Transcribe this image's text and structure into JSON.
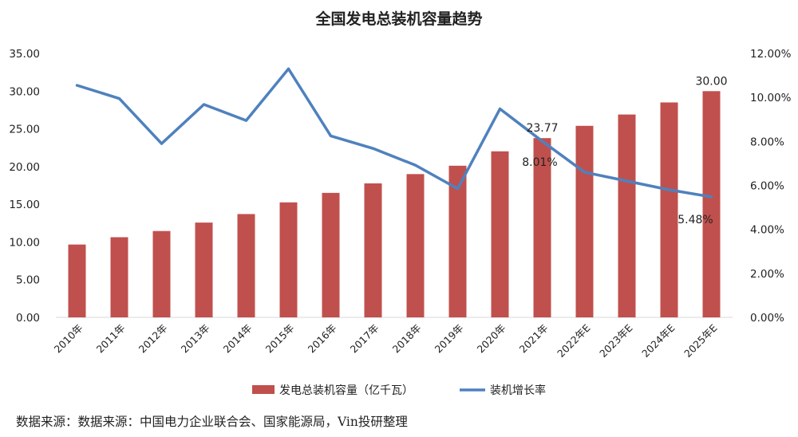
{
  "chart_data": {
    "type": "bar",
    "title": "全国发电总装机容量趋势",
    "categories": [
      "2010年",
      "2011年",
      "2012年",
      "2013年",
      "2014年",
      "2015年",
      "2016年",
      "2017年",
      "2018年",
      "2019年",
      "2020年",
      "2021年",
      "2022年E",
      "2023年E",
      "2024年E",
      "2025年E"
    ],
    "series": [
      {
        "name": "发电总装机容量（亿千瓦）",
        "type": "bar",
        "axis": "left",
        "color": "#C0504D",
        "values": [
          9.66,
          10.63,
          11.45,
          12.57,
          13.7,
          15.25,
          16.51,
          17.77,
          19.0,
          20.11,
          22.02,
          23.77,
          25.4,
          26.9,
          28.5,
          30.0
        ]
      },
      {
        "name": "装机增长率",
        "type": "line",
        "axis": "right",
        "color": "#4F81BD",
        "values": [
          0.1055,
          0.0995,
          0.079,
          0.0968,
          0.0895,
          0.113,
          0.0825,
          0.0768,
          0.0692,
          0.0585,
          0.0948,
          0.0801,
          0.066,
          0.062,
          0.058,
          0.0548
        ]
      }
    ],
    "y_left": {
      "ylim": [
        0,
        35
      ],
      "ticks": [
        "0.00",
        "5.00",
        "10.00",
        "15.00",
        "20.00",
        "25.00",
        "30.00",
        "35.00"
      ]
    },
    "y_right": {
      "ylim": [
        0,
        0.12
      ],
      "ticks": [
        "0.00%",
        "2.00%",
        "4.00%",
        "6.00%",
        "8.00%",
        "10.00%",
        "12.00%"
      ]
    },
    "data_labels": [
      {
        "series": 0,
        "index": 11,
        "text": "23.77"
      },
      {
        "series": 0,
        "index": 15,
        "text": "30.00"
      },
      {
        "series": 1,
        "index": 11,
        "text": "8.01%"
      },
      {
        "series": 1,
        "index": 15,
        "text": "5.48%"
      }
    ],
    "grid": false,
    "legend": "bottom"
  },
  "source_text": "数据来源：数据来源：中国电力企业联合会、国家能源局，Vin投研整理"
}
